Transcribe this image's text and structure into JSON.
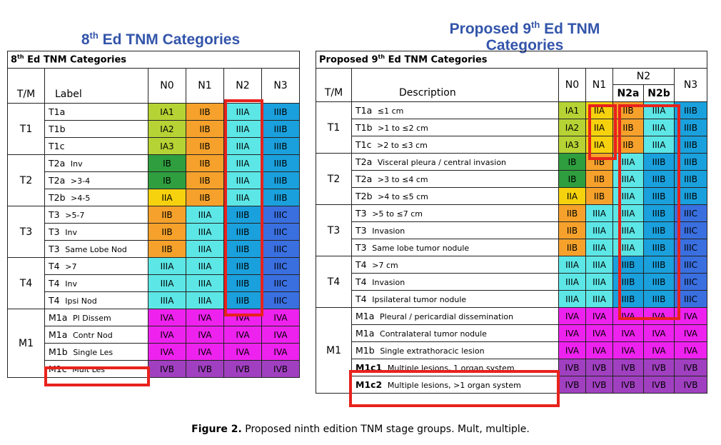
{
  "left": {
    "heading_main": "8",
    "heading_sup": "th",
    "heading_rest": " Ed TNM Categories",
    "title_main": "8",
    "title_sup": "th",
    "title_rest": " Ed TNM Categories",
    "col_tm": "T/M",
    "col_label": "Label",
    "cols": [
      "N0",
      "N1",
      "N2",
      "N3"
    ],
    "groups": [
      {
        "tm": "T1",
        "rows": [
          {
            "code": "T1a",
            "desc": "",
            "stages": [
              "IA1",
              "IIB",
              "IIIA",
              "IIIB"
            ]
          },
          {
            "code": "T1b",
            "desc": "",
            "stages": [
              "IA2",
              "IIB",
              "IIIA",
              "IIIB"
            ]
          },
          {
            "code": "T1c",
            "desc": "",
            "stages": [
              "IA3",
              "IIB",
              "IIIA",
              "IIIB"
            ]
          }
        ]
      },
      {
        "tm": "T2",
        "rows": [
          {
            "code": "T2a",
            "desc": "Inv",
            "stages": [
              "IB",
              "IIB",
              "IIIA",
              "IIIB"
            ]
          },
          {
            "code": "T2a",
            "desc": ">3-4",
            "stages": [
              "IB",
              "IIB",
              "IIIA",
              "IIIB"
            ]
          },
          {
            "code": "T2b",
            "desc": ">4-5",
            "stages": [
              "IIA",
              "IIB",
              "IIIA",
              "IIIB"
            ]
          }
        ]
      },
      {
        "tm": "T3",
        "rows": [
          {
            "code": "T3",
            "desc": ">5-7",
            "stages": [
              "IIB",
              "IIIA",
              "IIIB",
              "IIIC"
            ]
          },
          {
            "code": "T3",
            "desc": "Inv",
            "stages": [
              "IIB",
              "IIIA",
              "IIIB",
              "IIIC"
            ]
          },
          {
            "code": "T3",
            "desc": "Same Lobe Nod",
            "stages": [
              "IIB",
              "IIIA",
              "IIIB",
              "IIIC"
            ]
          }
        ]
      },
      {
        "tm": "T4",
        "rows": [
          {
            "code": "T4",
            "desc": ">7",
            "stages": [
              "IIIA",
              "IIIA",
              "IIIB",
              "IIIC"
            ]
          },
          {
            "code": "T4",
            "desc": "Inv",
            "stages": [
              "IIIA",
              "IIIA",
              "IIIB",
              "IIIC"
            ]
          },
          {
            "code": "T4",
            "desc": "Ipsi Nod",
            "stages": [
              "IIIA",
              "IIIA",
              "IIIB",
              "IIIC"
            ]
          }
        ]
      },
      {
        "tm": "M1",
        "rows": [
          {
            "code": "M1a",
            "desc": "Pl Dissem",
            "stages": [
              "IVA",
              "IVA",
              "IVA",
              "IVA"
            ]
          },
          {
            "code": "M1a",
            "desc": "Contr Nod",
            "stages": [
              "IVA",
              "IVA",
              "IVA",
              "IVA"
            ]
          },
          {
            "code": "M1b",
            "desc": "Single Les",
            "stages": [
              "IVA",
              "IVA",
              "IVA",
              "IVA"
            ]
          },
          {
            "code": "M1c",
            "desc": "Mult Les",
            "stages": [
              "IVB",
              "IVB",
              "IVB",
              "IVB"
            ]
          }
        ]
      }
    ]
  },
  "right": {
    "heading_line1_main": "Proposed 9",
    "heading_line1_sup": "th",
    "heading_line1_rest": " Ed TNM",
    "heading_line2": "Categories",
    "title_main": "Proposed 9",
    "title_sup": "th",
    "title_rest": " Ed TNM Categories",
    "col_tm": "T/M",
    "col_desc": "Description",
    "col_n0": "N0",
    "col_n1": "N1",
    "col_n2": "N2",
    "col_n2a": "N2a",
    "col_n2b": "N2b",
    "col_n3": "N3",
    "groups": [
      {
        "tm": "T1",
        "rows": [
          {
            "code": "T1a",
            "desc": "≤1 cm",
            "stages": [
              "IA1",
              "IIA",
              "IIB",
              "IIIA",
              "IIIB"
            ]
          },
          {
            "code": "T1b",
            "desc": ">1 to ≤2 cm",
            "stages": [
              "IA2",
              "IIA",
              "IIB",
              "IIIA",
              "IIIB"
            ]
          },
          {
            "code": "T1c",
            "desc": ">2 to ≤3 cm",
            "stages": [
              "IA3",
              "IIA",
              "IIB",
              "IIIA",
              "IIIB"
            ]
          }
        ]
      },
      {
        "tm": "T2",
        "rows": [
          {
            "code": "T2a",
            "desc": "Visceral pleura / central invasion",
            "stages": [
              "IB",
              "IIB",
              "IIIA",
              "IIIB",
              "IIIB"
            ]
          },
          {
            "code": "T2a",
            "desc": ">3 to ≤4 cm",
            "stages": [
              "IB",
              "IIB",
              "IIIA",
              "IIIB",
              "IIIB"
            ]
          },
          {
            "code": "T2b",
            "desc": ">4 to ≤5 cm",
            "stages": [
              "IIA",
              "IIB",
              "IIIA",
              "IIIB",
              "IIIB"
            ]
          }
        ]
      },
      {
        "tm": "T3",
        "rows": [
          {
            "code": "T3",
            "desc": ">5 to ≤7 cm",
            "stages": [
              "IIB",
              "IIIA",
              "IIIA",
              "IIIB",
              "IIIC"
            ]
          },
          {
            "code": "T3",
            "desc": "Invasion",
            "stages": [
              "IIB",
              "IIIA",
              "IIIA",
              "IIIB",
              "IIIC"
            ]
          },
          {
            "code": "T3",
            "desc": "Same lobe tumor nodule",
            "stages": [
              "IIB",
              "IIIA",
              "IIIA",
              "IIIB",
              "IIIC"
            ]
          }
        ]
      },
      {
        "tm": "T4",
        "rows": [
          {
            "code": "T4",
            "desc": ">7 cm",
            "stages": [
              "IIIA",
              "IIIA",
              "IIIB",
              "IIIB",
              "IIIC"
            ]
          },
          {
            "code": "T4",
            "desc": "Invasion",
            "stages": [
              "IIIA",
              "IIIA",
              "IIIB",
              "IIIB",
              "IIIC"
            ]
          },
          {
            "code": "T4",
            "desc": "Ipsilateral tumor nodule",
            "stages": [
              "IIIA",
              "IIIA",
              "IIIB",
              "IIIB",
              "IIIC"
            ]
          }
        ]
      },
      {
        "tm": "M1",
        "rows": [
          {
            "code": "M1a",
            "desc": "Pleural / pericardial dissemination",
            "stages": [
              "IVA",
              "IVA",
              "IVA",
              "IVA",
              "IVA"
            ]
          },
          {
            "code": "M1a",
            "desc": "Contralateral tumor nodule",
            "stages": [
              "IVA",
              "IVA",
              "IVA",
              "IVA",
              "IVA"
            ]
          },
          {
            "code": "M1b",
            "desc": "Single extrathoracic lesion",
            "stages": [
              "IVA",
              "IVA",
              "IVA",
              "IVA",
              "IVA"
            ]
          },
          {
            "code": "M1c1",
            "desc": "Multiple lesions, 1 organ system",
            "bold": true,
            "stages": [
              "IVB",
              "IVB",
              "IVB",
              "IVB",
              "IVB"
            ]
          },
          {
            "code": "M1c2",
            "desc": "Multiple lesions, >1 organ system",
            "bold": true,
            "stages": [
              "IVB",
              "IVB",
              "IVB",
              "IVB",
              "IVB"
            ]
          }
        ]
      }
    ]
  },
  "stage_colors": {
    "IA1": "#b5d334",
    "IA2": "#b5d334",
    "IA3": "#b5d334",
    "IB": "#2e9e3e",
    "IIA": "#f6d20e",
    "IIB": "#f5a12b",
    "IIIA": "#5de6e6",
    "IIIB": "#1aa0dc",
    "IIIC": "#3a6fe0",
    "IVA": "#ee22ee",
    "IVB": "#a040c0"
  },
  "highlight_color": "#e8221c",
  "caption": {
    "label": "Figure 2.",
    "text": " Proposed ninth edition TNM stage groups. Mult, multiple."
  }
}
